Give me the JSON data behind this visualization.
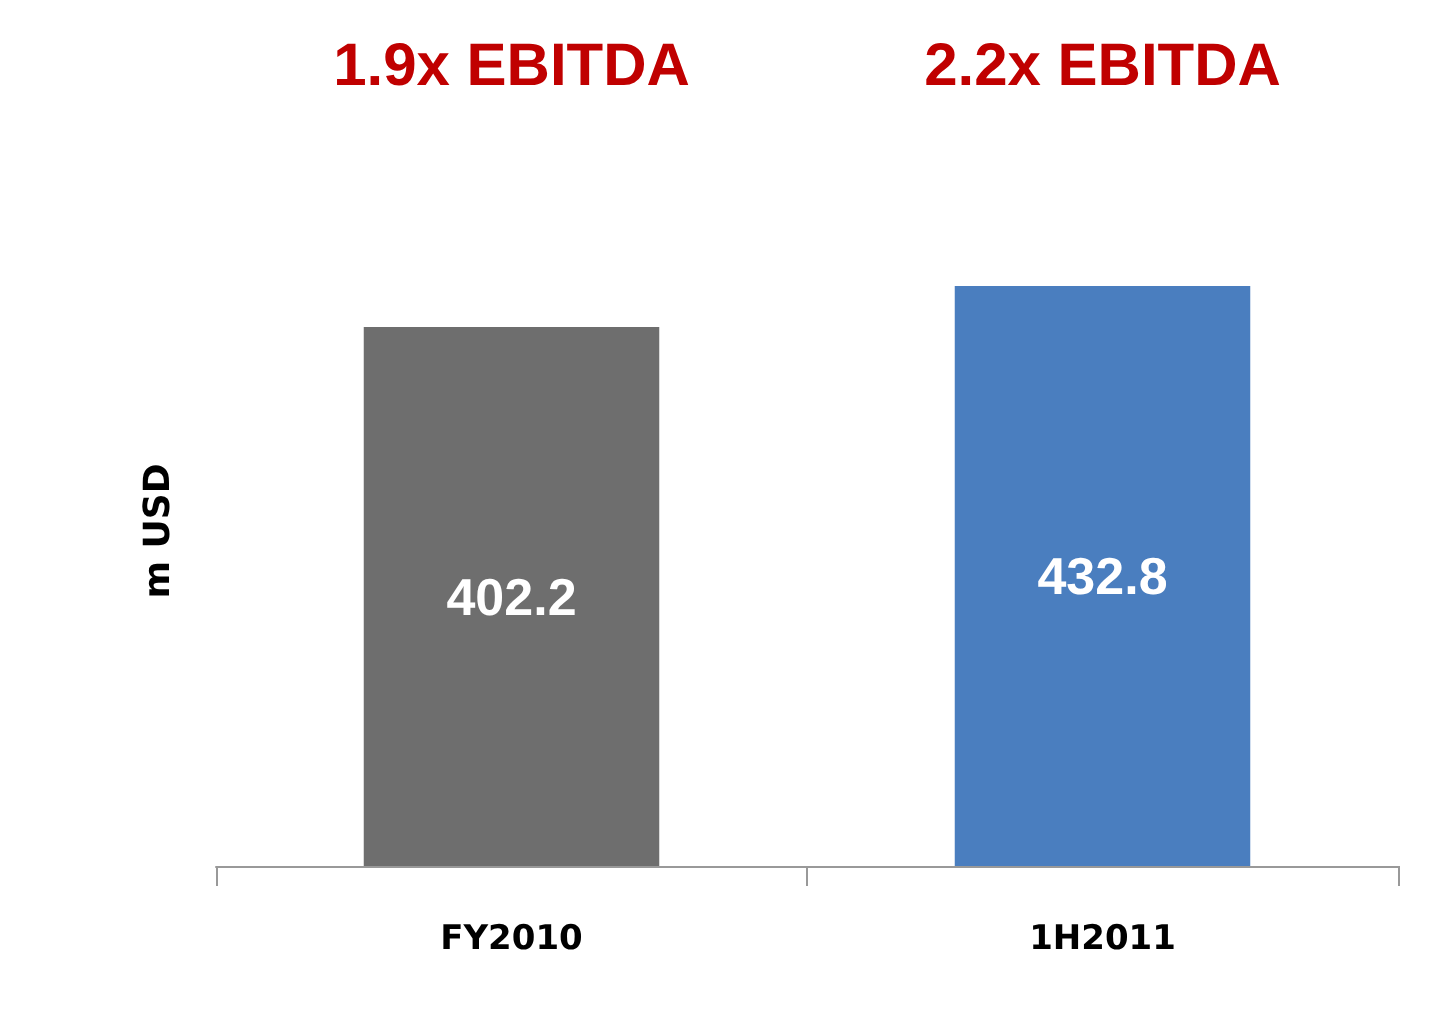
{
  "chart_data": {
    "type": "bar",
    "ylabel": "m USD",
    "categories": [
      "FY2010",
      "1H2011"
    ],
    "values": [
      402.2,
      432.8
    ],
    "colors": [
      "#6e6e6e",
      "#4a7ebf"
    ],
    "data_labels": true,
    "tick_labels": "x",
    "annotations": [
      "1.9x EBITDA",
      "2.2x EBITDA"
    ]
  }
}
